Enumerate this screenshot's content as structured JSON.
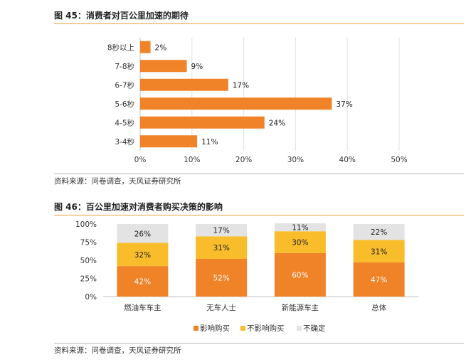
{
  "figure1": {
    "title": "图 45：消费者对百公里加速的期待",
    "source": "资料来源：问卷调查，天风证券研究所"
  },
  "figure2": {
    "title": "图 46：百公里加速对消费者购买决策的影响",
    "source": "资料来源：问卷调查，天风证券研究所"
  },
  "colors": {
    "orange": "#f08228",
    "yellow": "#f9bc2a",
    "lightgray": "#e3e3e3",
    "accent_rule": "#f0a040"
  },
  "chart_data": [
    {
      "type": "bar",
      "orientation": "horizontal",
      "categories": [
        "8秒以上",
        "7-8秒",
        "6-7秒",
        "5-6秒",
        "4-5秒",
        "3-4秒"
      ],
      "values": [
        2,
        9,
        17,
        37,
        24,
        11
      ],
      "value_labels": [
        "2%",
        "9%",
        "17%",
        "37%",
        "24%",
        "11%"
      ],
      "xlim": [
        0,
        50
      ],
      "x_ticks": [
        "0%",
        "10%",
        "20%",
        "30%",
        "40%",
        "50%"
      ],
      "grid": true
    },
    {
      "type": "bar",
      "stacked": true,
      "categories": [
        "燃油车车主",
        "无车人士",
        "新能源车主",
        "总体"
      ],
      "series": [
        {
          "name": "影响购买",
          "values": [
            42,
            52,
            60,
            47
          ],
          "labels": [
            "42%",
            "52%",
            "60%",
            "47%"
          ]
        },
        {
          "name": "不影响购买",
          "values": [
            32,
            31,
            30,
            31
          ],
          "labels": [
            "32%",
            "31%",
            "30%",
            "31%"
          ]
        },
        {
          "name": "不确定",
          "values": [
            26,
            17,
            11,
            22
          ],
          "labels": [
            "26%",
            "17%",
            "11%",
            "22%"
          ]
        }
      ],
      "ylim": [
        0,
        100
      ],
      "y_ticks": [
        "0%",
        "25%",
        "50%",
        "75%",
        "100%"
      ],
      "legend": "bottom",
      "grid": false
    }
  ]
}
